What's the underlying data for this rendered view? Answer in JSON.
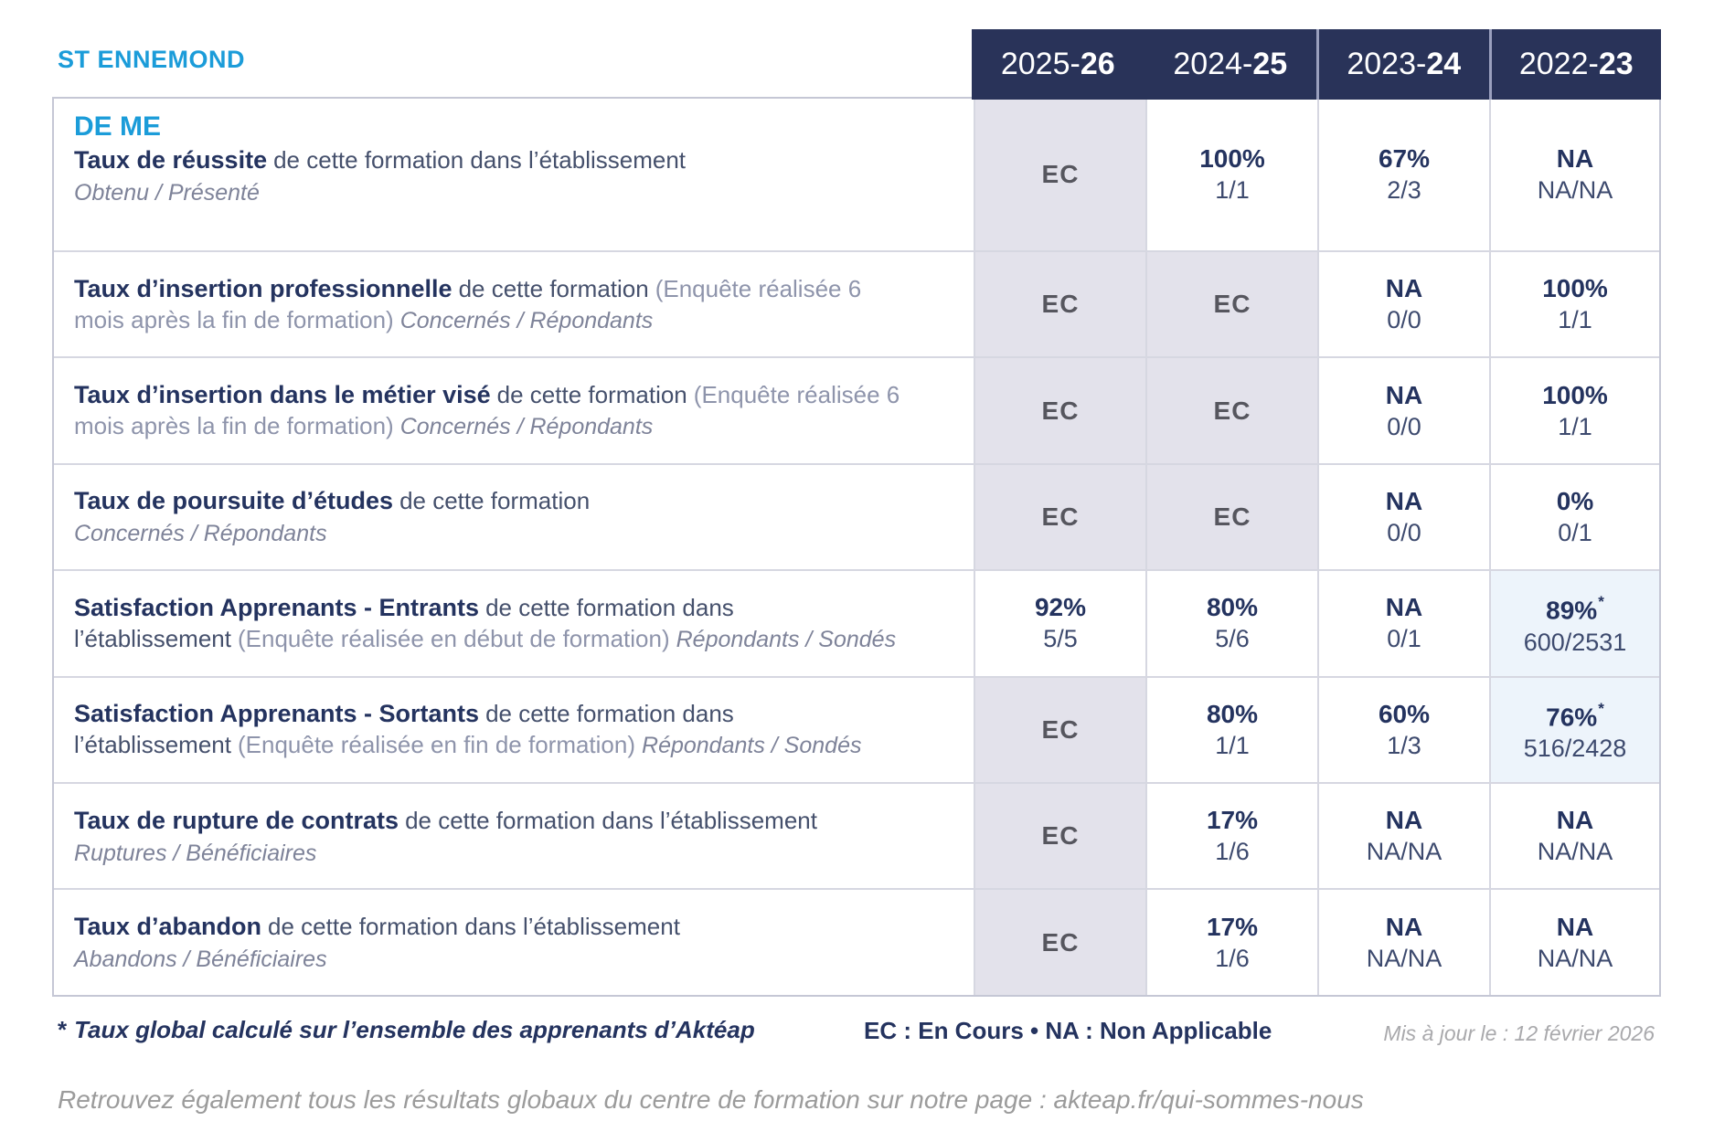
{
  "title": "ST ENNEMOND",
  "colors": {
    "accent_cyan": "#1b9cd9",
    "navy": "#24335f",
    "header_bg": "#293359",
    "ec_cell_bg": "#e3e2eb",
    "star_cell_bg": "#edf4fb"
  },
  "year_columns": [
    {
      "prefix": "2025-",
      "suffix": "26"
    },
    {
      "prefix": "2024-",
      "suffix": "25"
    },
    {
      "prefix": "2023-",
      "suffix": "24"
    },
    {
      "prefix": "2022-",
      "suffix": "23"
    }
  ],
  "rows": [
    {
      "code": "DE ME",
      "title": "Taux de réussite",
      "desc": "de cette formation dans l’établissement",
      "paren": "",
      "note_inline": "",
      "note_block": "Obtenu / Présenté",
      "cells": [
        {
          "type": "ec",
          "value": "EC"
        },
        {
          "type": "normal",
          "value": "100%",
          "fraction": "1/1"
        },
        {
          "type": "normal",
          "value": "67%",
          "fraction": "2/3"
        },
        {
          "type": "normal",
          "value": "NA",
          "fraction": "NA/NA"
        }
      ]
    },
    {
      "code": "",
      "title": "Taux d’insertion professionnelle",
      "desc": "de cette formation",
      "paren": "(Enquête réalisée 6 mois après la fin de formation)",
      "note_inline": "Concernés / Répondants",
      "note_block": "",
      "cells": [
        {
          "type": "ec",
          "value": "EC"
        },
        {
          "type": "ec",
          "value": "EC"
        },
        {
          "type": "normal",
          "value": "NA",
          "fraction": "0/0"
        },
        {
          "type": "normal",
          "value": "100%",
          "fraction": "1/1"
        }
      ]
    },
    {
      "code": "",
      "title": "Taux d’insertion dans le métier visé",
      "desc": "de cette formation",
      "paren": "(Enquête réalisée 6 mois après la fin de formation)",
      "note_inline": "Concernés / Répondants",
      "note_block": "",
      "cells": [
        {
          "type": "ec",
          "value": "EC"
        },
        {
          "type": "ec",
          "value": "EC"
        },
        {
          "type": "normal",
          "value": "NA",
          "fraction": "0/0"
        },
        {
          "type": "normal",
          "value": "100%",
          "fraction": "1/1"
        }
      ]
    },
    {
      "code": "",
      "title": "Taux de poursuite d’études",
      "desc": "de cette formation",
      "paren": "",
      "note_inline": "",
      "note_block": "Concernés / Répondants",
      "cells": [
        {
          "type": "ec",
          "value": "EC"
        },
        {
          "type": "ec",
          "value": "EC"
        },
        {
          "type": "normal",
          "value": "NA",
          "fraction": "0/0"
        },
        {
          "type": "normal",
          "value": "0%",
          "fraction": "0/1"
        }
      ]
    },
    {
      "code": "",
      "title": "Satisfaction Apprenants - Entrants",
      "desc": "de cette formation dans l’établissement",
      "paren": "(Enquête réalisée en début de formation)",
      "note_inline": "Répondants / Sondés",
      "note_block": "",
      "cells": [
        {
          "type": "normal",
          "value": "92%",
          "fraction": "5/5"
        },
        {
          "type": "normal",
          "value": "80%",
          "fraction": "5/6"
        },
        {
          "type": "normal",
          "value": "NA",
          "fraction": "0/1"
        },
        {
          "type": "star",
          "value": "89%",
          "star": "*",
          "fraction": "600/2531"
        }
      ]
    },
    {
      "code": "",
      "title": "Satisfaction Apprenants - Sortants",
      "desc": "de cette formation dans l’établissement",
      "paren": "(Enquête réalisée en fin de formation)",
      "note_inline": "Répondants / Sondés",
      "note_block": "",
      "cells": [
        {
          "type": "ec",
          "value": "EC"
        },
        {
          "type": "normal",
          "value": "80%",
          "fraction": "1/1"
        },
        {
          "type": "normal",
          "value": "60%",
          "fraction": "1/3"
        },
        {
          "type": "star",
          "value": "76%",
          "star": "*",
          "fraction": "516/2428"
        }
      ]
    },
    {
      "code": "",
      "title": "Taux de rupture de contrats",
      "desc": "de cette formation dans l’établissement",
      "paren": "",
      "note_inline": "",
      "note_block": "Ruptures / Bénéficiaires",
      "cells": [
        {
          "type": "ec",
          "value": "EC"
        },
        {
          "type": "normal",
          "value": "17%",
          "fraction": "1/6"
        },
        {
          "type": "normal",
          "value": "NA",
          "fraction": "NA/NA"
        },
        {
          "type": "normal",
          "value": "NA",
          "fraction": "NA/NA"
        }
      ]
    },
    {
      "code": "",
      "title": "Taux d’abandon",
      "desc": "de cette formation dans l’établissement",
      "paren": "",
      "note_inline": "",
      "note_block": "Abandons / Bénéficiaires",
      "cells": [
        {
          "type": "ec",
          "value": "EC"
        },
        {
          "type": "normal",
          "value": "17%",
          "fraction": "1/6"
        },
        {
          "type": "normal",
          "value": "NA",
          "fraction": "NA/NA"
        },
        {
          "type": "normal",
          "value": "NA",
          "fraction": "NA/NA"
        }
      ]
    }
  ],
  "footer": {
    "asterisk": "*",
    "footnote": "Taux global calculé sur l’ensemble des apprenants d’Aktéap",
    "legend": "EC : En Cours   •   NA : Non Applicable",
    "updated": "Mis à jour le : 12 février 2026",
    "bottom_note": "Retrouvez également tous les résultats globaux du centre de formation sur notre page : akteap.fr/qui-sommes-nous"
  }
}
